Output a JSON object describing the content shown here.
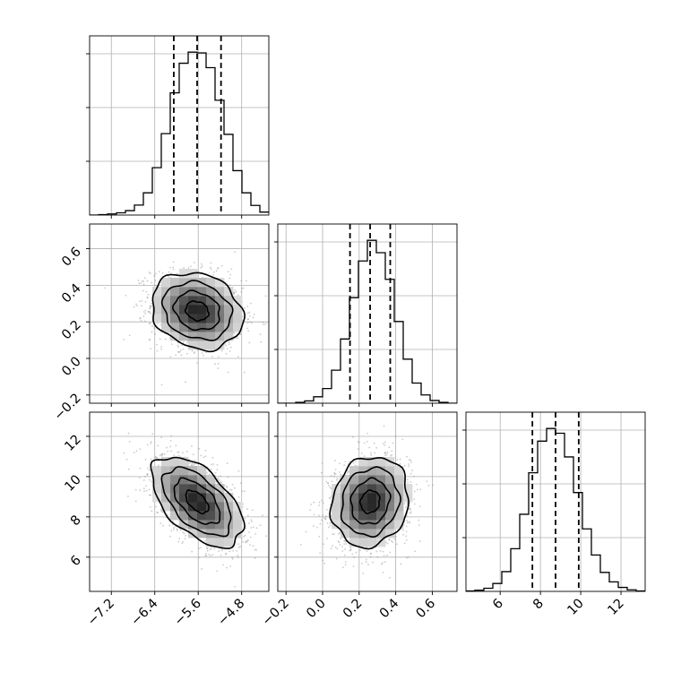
{
  "chart_data": {
    "type": "corner",
    "parameters": [
      {
        "index": 0,
        "range": [
          -7.6,
          -4.3
        ],
        "ticks": [
          -7.2,
          -6.4,
          -5.6,
          -4.8
        ],
        "tick_labels": [
          "−7.2",
          "−6.4",
          "−5.6",
          "−4.8"
        ],
        "median": -5.62,
        "quantiles": [
          -6.05,
          -5.62,
          -5.18
        ]
      },
      {
        "index": 1,
        "range": [
          -0.245,
          0.735
        ],
        "ticks": [
          -0.2,
          0.0,
          0.2,
          0.4,
          0.6
        ],
        "tick_labels": [
          "−0.2",
          "0.0",
          "0.2",
          "0.4",
          "0.6"
        ],
        "median": 0.26,
        "quantiles": [
          0.15,
          0.26,
          0.37
        ]
      },
      {
        "index": 2,
        "range": [
          4.3,
          13.2
        ],
        "ticks": [
          6,
          8,
          10,
          12
        ],
        "tick_labels": [
          "6",
          "8",
          "10",
          "12"
        ],
        "median": 8.75,
        "quantiles": [
          7.6,
          8.75,
          9.9
        ]
      }
    ],
    "histograms": [
      {
        "param": 0,
        "bin_edges": [
          -7.6,
          -7.435,
          -7.27,
          -7.105,
          -6.94,
          -6.775,
          -6.61,
          -6.445,
          -6.28,
          -6.115,
          -5.95,
          -5.785,
          -5.62,
          -5.455,
          -5.29,
          -5.125,
          -4.96,
          -4.795,
          -4.63,
          -4.465,
          -4.3
        ],
        "counts": [
          0,
          1,
          3,
          6,
          12,
          27,
          60,
          128,
          220,
          330,
          410,
          440,
          438,
          398,
          310,
          218,
          120,
          60,
          26,
          8
        ]
      },
      {
        "param": 1,
        "bin_edges": [
          -0.245,
          -0.196,
          -0.147,
          -0.098,
          -0.049,
          0.0,
          0.049,
          0.098,
          0.147,
          0.196,
          0.245,
          0.294,
          0.343,
          0.392,
          0.441,
          0.49,
          0.539,
          0.588,
          0.637,
          0.686,
          0.735
        ],
        "counts": [
          0,
          0,
          2,
          5,
          14,
          32,
          72,
          140,
          230,
          310,
          355,
          328,
          270,
          178,
          96,
          44,
          18,
          6,
          2,
          0
        ]
      },
      {
        "param": 2,
        "bin_edges": [
          4.3,
          4.745,
          5.19,
          5.635,
          6.08,
          6.525,
          6.97,
          7.415,
          7.86,
          8.305,
          8.75,
          9.195,
          9.64,
          10.085,
          10.53,
          10.975,
          11.42,
          11.865,
          12.31,
          12.755,
          13.2
        ],
        "counts": [
          1,
          3,
          8,
          20,
          50,
          108,
          195,
          300,
          380,
          412,
          400,
          340,
          250,
          158,
          92,
          48,
          24,
          10,
          4,
          1
        ]
      }
    ],
    "joint": [
      {
        "x_param": 0,
        "y_param": 1,
        "center": [
          -5.62,
          0.26
        ],
        "std": [
          0.42,
          0.105
        ],
        "rho": -0.18
      },
      {
        "x_param": 0,
        "y_param": 2,
        "center": [
          -5.62,
          8.75
        ],
        "std": [
          0.42,
          1.12
        ],
        "rho": -0.55
      },
      {
        "x_param": 1,
        "y_param": 2,
        "center": [
          0.26,
          8.75
        ],
        "std": [
          0.105,
          1.12
        ],
        "rho": 0.12
      }
    ],
    "contour_levels_sigma": [
      0.5,
      1.0,
      1.5,
      2.0
    ],
    "grid": true,
    "title": "",
    "xlabel": "",
    "ylabel": ""
  }
}
